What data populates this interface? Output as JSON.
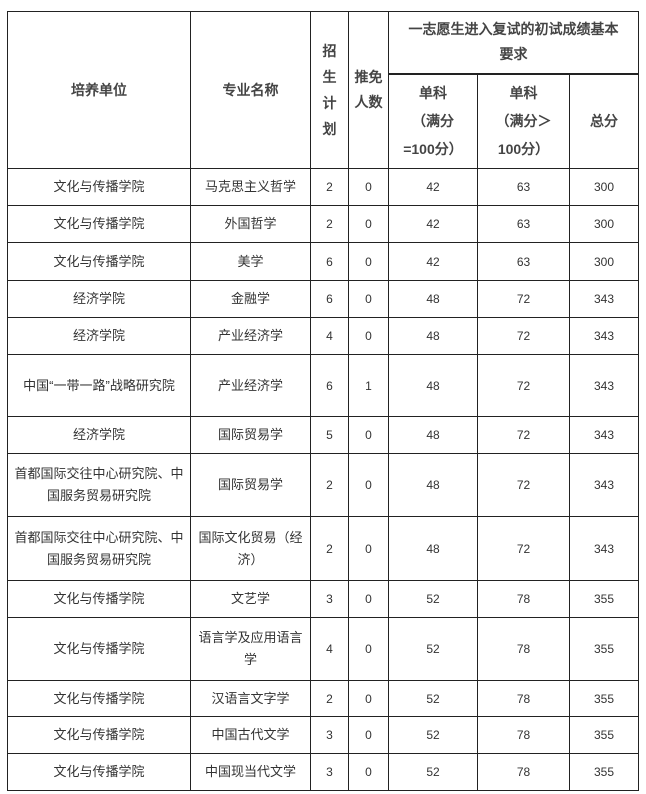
{
  "headers": {
    "unit": "培养单位",
    "major": "专业名称",
    "plan": "招\n生\n计\n划",
    "exempt": "推免人数",
    "group": "一志愿生进入复试的初试成绩基本要求",
    "single100": "单科\n（满分\n=100分）",
    "singleGt100": "单科\n（满分＞\n100分）",
    "total": "总分"
  },
  "rows": [
    {
      "unit": "文化与传播学院",
      "major": "马克思主义哲学",
      "plan": "2",
      "exempt": "0",
      "s100": "42",
      "sgt": "63",
      "total": "300"
    },
    {
      "unit": "文化与传播学院",
      "major": "外国哲学",
      "plan": "2",
      "exempt": "0",
      "s100": "42",
      "sgt": "63",
      "total": "300"
    },
    {
      "unit": "文化与传播学院",
      "major": "美学",
      "plan": "6",
      "exempt": "0",
      "s100": "42",
      "sgt": "63",
      "total": "300"
    },
    {
      "unit": "经济学院",
      "major": "金融学",
      "plan": "6",
      "exempt": "0",
      "s100": "48",
      "sgt": "72",
      "total": "343"
    },
    {
      "unit": "经济学院",
      "major": "产业经济学",
      "plan": "4",
      "exempt": "0",
      "s100": "48",
      "sgt": "72",
      "total": "343"
    },
    {
      "unit": "中国“一带一路”战略研究院",
      "major": "产业经济学",
      "plan": "6",
      "exempt": "1",
      "s100": "48",
      "sgt": "72",
      "total": "343"
    },
    {
      "unit": "经济学院",
      "major": "国际贸易学",
      "plan": "5",
      "exempt": "0",
      "s100": "48",
      "sgt": "72",
      "total": "343"
    },
    {
      "unit": "首都国际交往中心研究院、中国服务贸易研究院",
      "major": "国际贸易学",
      "plan": "2",
      "exempt": "0",
      "s100": "48",
      "sgt": "72",
      "total": "343"
    },
    {
      "unit": "首都国际交往中心研究院、中国服务贸易研究院",
      "major": "国际文化贸易（经济）",
      "plan": "2",
      "exempt": "0",
      "s100": "48",
      "sgt": "72",
      "total": "343"
    },
    {
      "unit": "文化与传播学院",
      "major": "文艺学",
      "plan": "3",
      "exempt": "0",
      "s100": "52",
      "sgt": "78",
      "total": "355"
    },
    {
      "unit": "文化与传播学院",
      "major": "语言学及应用语言学",
      "plan": "4",
      "exempt": "0",
      "s100": "52",
      "sgt": "78",
      "total": "355"
    },
    {
      "unit": "文化与传播学院",
      "major": "汉语言文字学",
      "plan": "2",
      "exempt": "0",
      "s100": "52",
      "sgt": "78",
      "total": "355"
    },
    {
      "unit": "文化与传播学院",
      "major": "中国古代文学",
      "plan": "3",
      "exempt": "0",
      "s100": "52",
      "sgt": "78",
      "total": "355"
    },
    {
      "unit": "文化与传播学院",
      "major": "中国现当代文学",
      "plan": "3",
      "exempt": "0",
      "s100": "52",
      "sgt": "78",
      "total": "355"
    }
  ]
}
